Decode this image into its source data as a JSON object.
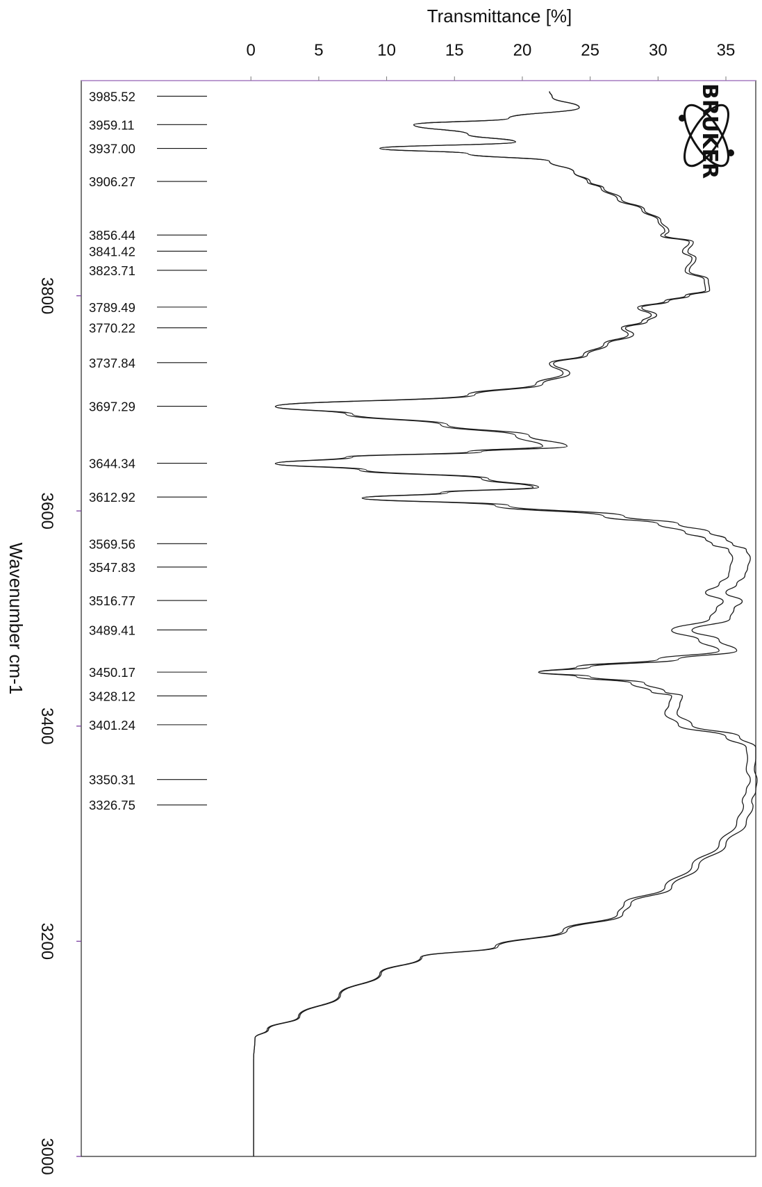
{
  "chart_data": {
    "type": "line",
    "title": "",
    "xlabel": "Transmittance [%]",
    "ylabel": "Wavenumber cm-1",
    "xlim": [
      -12.5,
      37.2
    ],
    "ylim": [
      4000,
      3000
    ],
    "xticks": [
      "0",
      "5",
      "10",
      "15",
      "20",
      "25",
      "30",
      "35"
    ],
    "yticks": [
      "3800",
      "3600",
      "3400",
      "3200",
      "3000"
    ],
    "logo": "BRUKER",
    "peak_labels": [
      "3985.52",
      "3959.11",
      "3937.00",
      "3906.27",
      "3856.44",
      "3841.42",
      "3823.71",
      "3789.49",
      "3770.22",
      "3737.84",
      "3697.29",
      "3644.34",
      "3612.92",
      "3569.56",
      "3547.83",
      "3516.77",
      "3489.41",
      "3450.17",
      "3428.12",
      "3401.24",
      "3350.31",
      "3326.75"
    ],
    "series": [
      {
        "y": [
          3990,
          3985,
          3975,
          3965,
          3959,
          3950,
          3943,
          3937,
          3932,
          3925,
          3915,
          3906,
          3900,
          3890,
          3880,
          3870,
          3860,
          3856,
          3850,
          3841,
          3835,
          3823,
          3815,
          3805,
          3800,
          3795,
          3789,
          3782,
          3776,
          3770,
          3764,
          3755,
          3745,
          3737,
          3728,
          3718,
          3708,
          3697,
          3690,
          3680,
          3670,
          3660,
          3655,
          3650,
          3644,
          3638,
          3630,
          3622,
          3617,
          3612,
          3605,
          3595,
          3588,
          3580,
          3574,
          3569,
          3564,
          3556,
          3547,
          3540,
          3532,
          3524,
          3516,
          3509,
          3500,
          3489,
          3480,
          3470,
          3462,
          3455,
          3450,
          3446,
          3440,
          3432,
          3428,
          3420,
          3412,
          3401,
          3390,
          3380,
          3370,
          3360,
          3350,
          3340,
          3330,
          3326,
          3310,
          3290,
          3270,
          3250,
          3235,
          3225,
          3210,
          3195,
          3185,
          3170,
          3150,
          3130,
          3118,
          3110,
          3090,
          3050,
          3000
        ],
        "x": [
          22.0,
          22.2,
          24.2,
          19.0,
          12.0,
          16.0,
          19.5,
          9.5,
          16.0,
          22.0,
          23.8,
          24.8,
          25.8,
          27.0,
          28.8,
          30.0,
          30.5,
          30.2,
          32.3,
          31.8,
          32.5,
          32.0,
          33.4,
          33.5,
          32.0,
          30.5,
          28.5,
          29.5,
          28.8,
          27.3,
          27.8,
          26.0,
          24.5,
          22.0,
          23.0,
          21.0,
          16.0,
          1.8,
          7.0,
          14.0,
          19.5,
          21.5,
          16.0,
          7.0,
          1.8,
          8.0,
          17.0,
          20.8,
          14.0,
          8.2,
          18.0,
          26.0,
          30.0,
          32.0,
          33.5,
          34.0,
          35.2,
          35.5,
          35.3,
          35.2,
          34.5,
          33.5,
          34.8,
          34.3,
          33.8,
          31.0,
          33.0,
          34.5,
          30.0,
          24.0,
          21.2,
          24.0,
          28.0,
          29.5,
          31.0,
          30.8,
          30.5,
          31.5,
          35.0,
          36.5,
          36.6,
          36.5,
          36.8,
          36.5,
          36.2,
          36.3,
          35.8,
          34.5,
          32.5,
          30.5,
          27.5,
          27.0,
          23.0,
          18.0,
          12.5,
          9.5,
          6.5,
          3.5,
          1.2,
          0.3,
          0.2,
          0.2,
          0.2
        ]
      },
      {
        "y": [
          3990,
          3985,
          3975,
          3965,
          3959,
          3950,
          3943,
          3937,
          3932,
          3925,
          3915,
          3906,
          3900,
          3890,
          3880,
          3870,
          3860,
          3856,
          3850,
          3841,
          3835,
          3823,
          3815,
          3805,
          3800,
          3795,
          3789,
          3782,
          3776,
          3770,
          3764,
          3755,
          3745,
          3737,
          3728,
          3718,
          3708,
          3697,
          3690,
          3680,
          3670,
          3660,
          3655,
          3650,
          3644,
          3638,
          3630,
          3622,
          3617,
          3612,
          3605,
          3595,
          3588,
          3580,
          3574,
          3569,
          3564,
          3556,
          3547,
          3540,
          3532,
          3524,
          3516,
          3509,
          3500,
          3489,
          3480,
          3470,
          3462,
          3455,
          3450,
          3446,
          3440,
          3432,
          3428,
          3420,
          3412,
          3401,
          3390,
          3380,
          3370,
          3360,
          3350,
          3340,
          3330,
          3326,
          3310,
          3290,
          3270,
          3250,
          3235,
          3225,
          3210,
          3195,
          3185,
          3170,
          3150,
          3130,
          3118,
          3110,
          3090,
          3050,
          3000
        ],
        "x": [
          22.0,
          22.2,
          24.2,
          19.0,
          12.0,
          16.0,
          19.5,
          9.5,
          16.0,
          22.0,
          23.8,
          25.0,
          26.0,
          27.3,
          29.0,
          30.2,
          30.8,
          30.5,
          32.6,
          32.2,
          32.8,
          32.3,
          33.7,
          33.8,
          32.3,
          30.8,
          28.8,
          29.9,
          29.2,
          27.6,
          28.2,
          26.3,
          24.8,
          22.3,
          23.5,
          21.5,
          16.5,
          1.8,
          7.5,
          14.5,
          20.5,
          23.3,
          17.0,
          7.5,
          1.8,
          8.5,
          17.5,
          21.2,
          14.5,
          8.2,
          19.0,
          27.5,
          31.5,
          33.8,
          35.0,
          35.5,
          36.5,
          36.8,
          36.6,
          36.4,
          35.8,
          35.0,
          36.2,
          35.6,
          35.3,
          32.5,
          34.5,
          35.8,
          31.5,
          25.0,
          21.2,
          25.0,
          29.0,
          30.5,
          31.8,
          31.6,
          31.4,
          32.5,
          36.0,
          37.2,
          37.2,
          37.1,
          37.3,
          37.2,
          36.9,
          37.0,
          36.5,
          35.0,
          33.0,
          31.0,
          28.0,
          27.4,
          23.3,
          18.2,
          12.6,
          9.6,
          6.6,
          3.6,
          1.3,
          0.3,
          0.2,
          0.2,
          0.2
        ]
      }
    ]
  }
}
